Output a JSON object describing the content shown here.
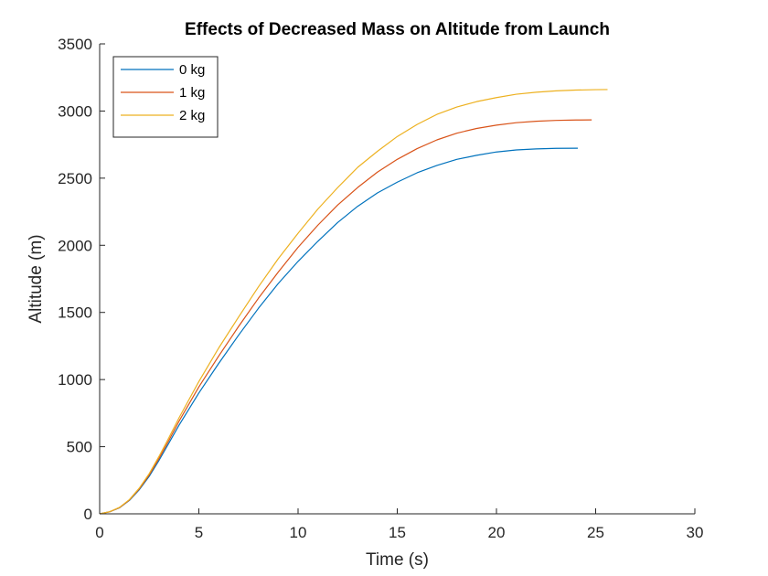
{
  "chart_data": {
    "type": "line",
    "title": "Effects of Decreased Mass on Altitude from Launch",
    "xlabel": "Time (s)",
    "ylabel": "Altitude (m)",
    "xlim": [
      0,
      30
    ],
    "ylim": [
      0,
      3500
    ],
    "xticks": [
      0,
      5,
      10,
      15,
      20,
      25,
      30
    ],
    "yticks": [
      0,
      500,
      1000,
      1500,
      2000,
      2500,
      3000,
      3500
    ],
    "grid": false,
    "legend_position": "top-left",
    "series": [
      {
        "name": "0 kg",
        "color": "#0072BD",
        "x": [
          0,
          0.5,
          1,
          1.5,
          2,
          2.5,
          3,
          3.5,
          4,
          5,
          6,
          7,
          8,
          9,
          10,
          11,
          12,
          13,
          14,
          15,
          16,
          17,
          18,
          19,
          20,
          21,
          22,
          23,
          24.1
        ],
        "y": [
          0,
          15,
          45,
          100,
          180,
          280,
          400,
          530,
          660,
          900,
          1120,
          1330,
          1530,
          1715,
          1880,
          2030,
          2170,
          2290,
          2390,
          2470,
          2540,
          2595,
          2640,
          2670,
          2695,
          2710,
          2718,
          2722,
          2723
        ]
      },
      {
        "name": "1 kg",
        "color": "#D95319",
        "x": [
          0,
          0.5,
          1,
          1.5,
          2,
          2.5,
          3,
          3.5,
          4,
          5,
          6,
          7,
          8,
          9,
          10,
          11,
          12,
          13,
          14,
          15,
          16,
          17,
          18,
          19,
          20,
          21,
          22,
          23,
          24,
          24.8
        ],
        "y": [
          0,
          15,
          46,
          103,
          186,
          290,
          415,
          550,
          690,
          945,
          1175,
          1395,
          1605,
          1800,
          1985,
          2150,
          2300,
          2430,
          2545,
          2640,
          2720,
          2785,
          2835,
          2870,
          2895,
          2913,
          2924,
          2930,
          2933,
          2934
        ]
      },
      {
        "name": "2 kg",
        "color": "#EDB120",
        "x": [
          0,
          0.5,
          1,
          1.5,
          2,
          2.5,
          3,
          3.5,
          4,
          5,
          6,
          7,
          8,
          9,
          10,
          11,
          12,
          13,
          14,
          15,
          16,
          17,
          18,
          19,
          20,
          21,
          22,
          23,
          24,
          25,
          25.6
        ],
        "y": [
          0,
          16,
          48,
          106,
          192,
          300,
          430,
          570,
          715,
          985,
          1235,
          1465,
          1690,
          1900,
          2090,
          2270,
          2430,
          2580,
          2700,
          2810,
          2900,
          2975,
          3030,
          3070,
          3100,
          3125,
          3140,
          3150,
          3156,
          3159,
          3160
        ]
      }
    ]
  }
}
